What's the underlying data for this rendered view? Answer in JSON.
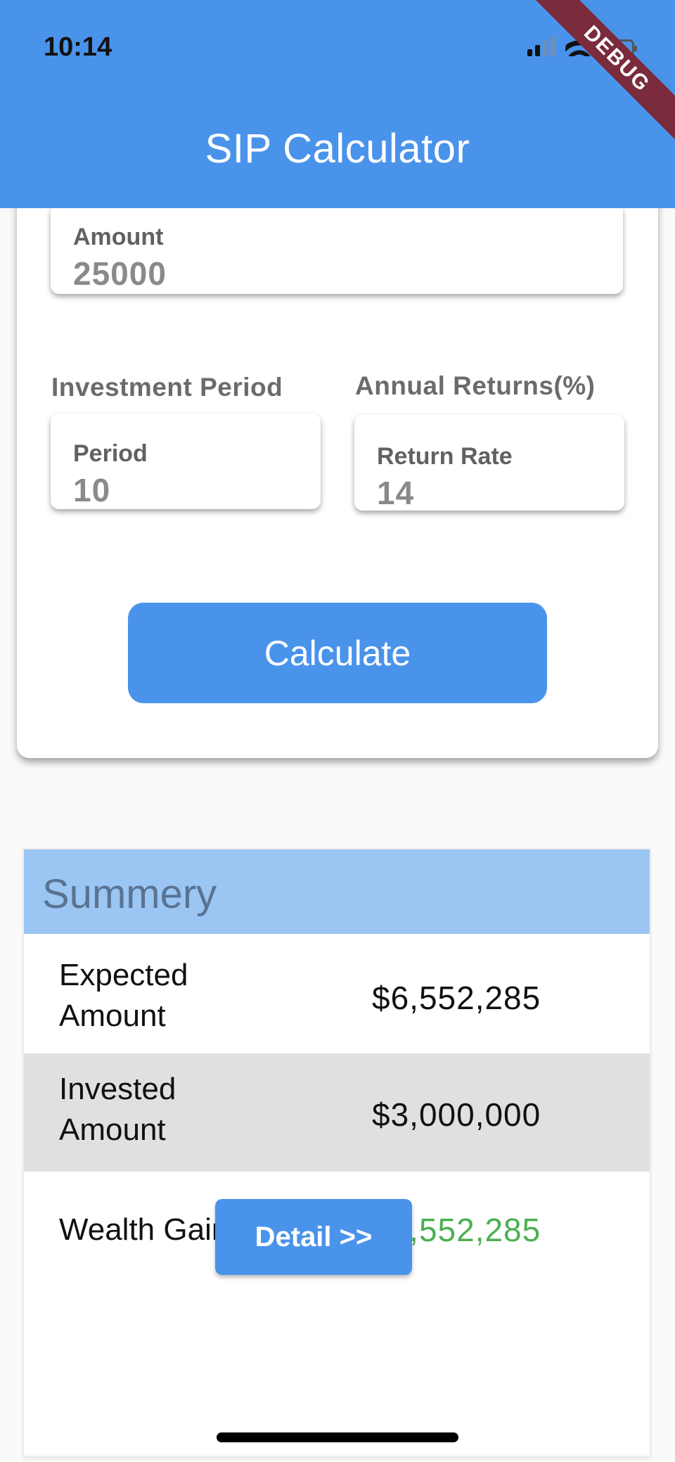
{
  "status": {
    "time": "10:14"
  },
  "appbar": {
    "title": "SIP Calculator",
    "debug_label": "DEBUG"
  },
  "form": {
    "amount": {
      "label": "Amount",
      "value": "25000"
    },
    "investment_period_label": "Investment Period",
    "annual_returns_label": "Annual Returns(%)",
    "period": {
      "label": "Period",
      "value": "10"
    },
    "return_rate": {
      "label": "Return Rate",
      "value": "14"
    },
    "calculate_label": "Calculate"
  },
  "summary": {
    "title": "Summery",
    "rows": [
      {
        "label_line1": "Expected",
        "label_line2": "Amount",
        "value": "$6,552,285",
        "value_color": "#111111",
        "bg": "#ffffff"
      },
      {
        "label_line1": "Invested",
        "label_line2": "Amount",
        "value": "$3,000,000",
        "value_color": "#111111",
        "bg": "#e0e0e0"
      },
      {
        "label_line1": "Wealth Gain",
        "label_line2": "",
        "value": "$3,552,285",
        "value_color": "#4caf50",
        "bg": "#ffffff"
      }
    ],
    "detail_label": "Detail >>"
  },
  "colors": {
    "primary": "#4a93eb",
    "summary_header": "#9bc6f4",
    "gain": "#4caf50"
  }
}
